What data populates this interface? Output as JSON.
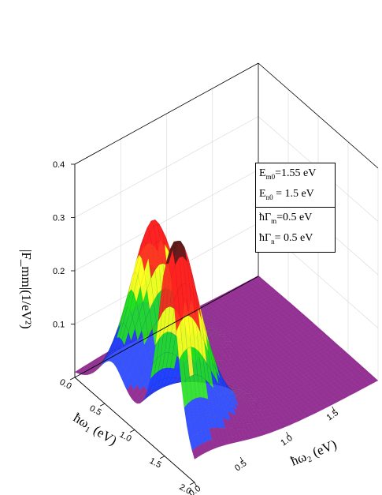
{
  "chart_data": {
    "type": "surface3d",
    "z_label": "|F_mm|(1/eV²)",
    "x_label": "ħω₁ (eV)",
    "y_label": "ħω₂ (eV)",
    "z_ticks": [
      "0.4",
      "0.3",
      "0.2",
      "0.1"
    ],
    "x_ticks": [
      "0.0",
      "0.5",
      "1.0",
      "1.5",
      "2.0"
    ],
    "y_ticks": [
      "0.0",
      "0.5",
      "1.0",
      "1.5"
    ],
    "x_range": [
      0,
      2
    ],
    "y_range": [
      0,
      2
    ],
    "z_range": [
      0,
      0.4
    ],
    "peaks": [
      {
        "w1": 0.62,
        "w2": 0.45,
        "height": 0.31
      },
      {
        "w1": 1.55,
        "w2": 0.1,
        "height": 0.4
      }
    ],
    "colormap": [
      "#8b1a8b",
      "#2040ff",
      "#20e020",
      "#ffff20",
      "#ff2020",
      "#5a1a1a"
    ],
    "grid": true
  },
  "legend": {
    "energy_line1": "E",
    "energy_line1_sub": "m0",
    "energy_line1_val": "=1.55 eV",
    "energy_line2": "E",
    "energy_line2_sub": "n0",
    "energy_line2_val": " = 1.5 eV",
    "gamma_line1": "ħΓ",
    "gamma_line1_sub": "m",
    "gamma_line1_val": "=0.5 eV",
    "gamma_line2": "ħΓ",
    "gamma_line2_sub": "n",
    "gamma_line2_val": "= 0.5 eV"
  }
}
